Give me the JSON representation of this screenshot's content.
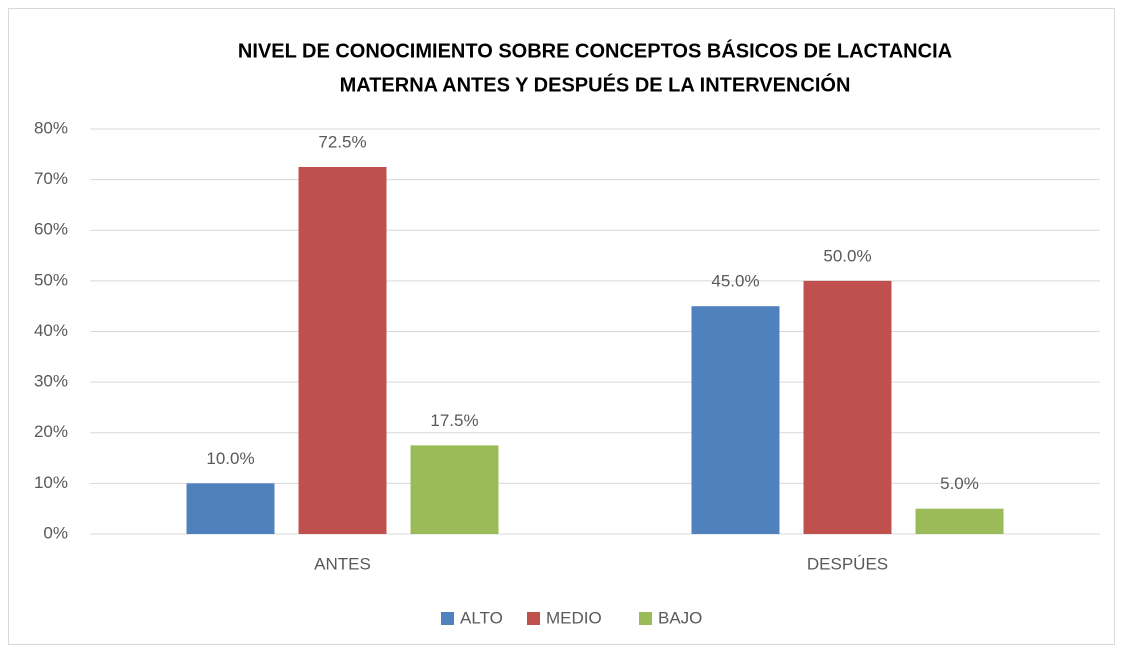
{
  "chart_data": {
    "type": "bar",
    "title": [
      "NIVEL DE CONOCIMIENTO SOBRE CONCEPTOS BÁSICOS DE LACTANCIA",
      "MATERNA ANTES Y DESPUÉS DE LA INTERVENCIÓN"
    ],
    "categories": [
      "ANTES",
      "DESPÚES"
    ],
    "series": [
      {
        "name": "ALTO",
        "color": "#4f81bd",
        "values": [
          10,
          45
        ],
        "value_labels": [
          "10.0%",
          "45.0%"
        ]
      },
      {
        "name": "MEDIO",
        "color": "#c0504d",
        "values": [
          72.5,
          50
        ],
        "value_labels": [
          "72.5%",
          "50.0%"
        ]
      },
      {
        "name": "BAJO",
        "color": "#9bbb59",
        "values": [
          17.5,
          5
        ],
        "value_labels": [
          "17.5%",
          "5.0%"
        ]
      }
    ],
    "ylim": [
      0,
      80
    ],
    "yticks": [
      {
        "value": 0,
        "label": "0%"
      },
      {
        "value": 10,
        "label": "10%"
      },
      {
        "value": 20,
        "label": "20%"
      },
      {
        "value": 30,
        "label": "30%"
      },
      {
        "value": 40,
        "label": "40%"
      },
      {
        "value": 50,
        "label": "50%"
      },
      {
        "value": 60,
        "label": "60%"
      },
      {
        "value": 70,
        "label": "70%"
      },
      {
        "value": 80,
        "label": "80%"
      }
    ],
    "grid": true,
    "legend": "bottom"
  }
}
